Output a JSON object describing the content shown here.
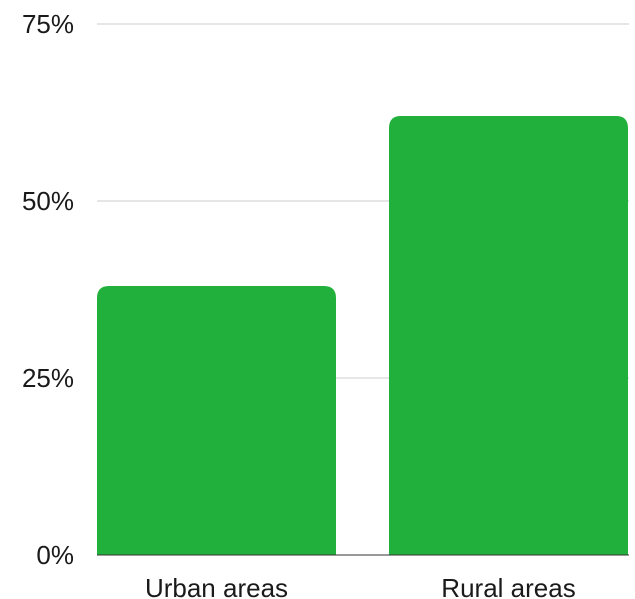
{
  "chart_data": {
    "type": "bar",
    "title": "",
    "xlabel": "",
    "ylabel": "",
    "categories": [
      "Urban areas",
      "Rural areas"
    ],
    "values": [
      38,
      62
    ],
    "ylim": [
      0,
      75
    ],
    "yticks": [
      0,
      25,
      50,
      75
    ],
    "ytick_labels": [
      "0%",
      "25%",
      "50%",
      "75%"
    ],
    "grid": true,
    "legend": "none",
    "colors": {
      "bar": "#22b03c",
      "grid": "#cccccc",
      "axis": "#333333",
      "text": "#1a1a1a"
    }
  }
}
